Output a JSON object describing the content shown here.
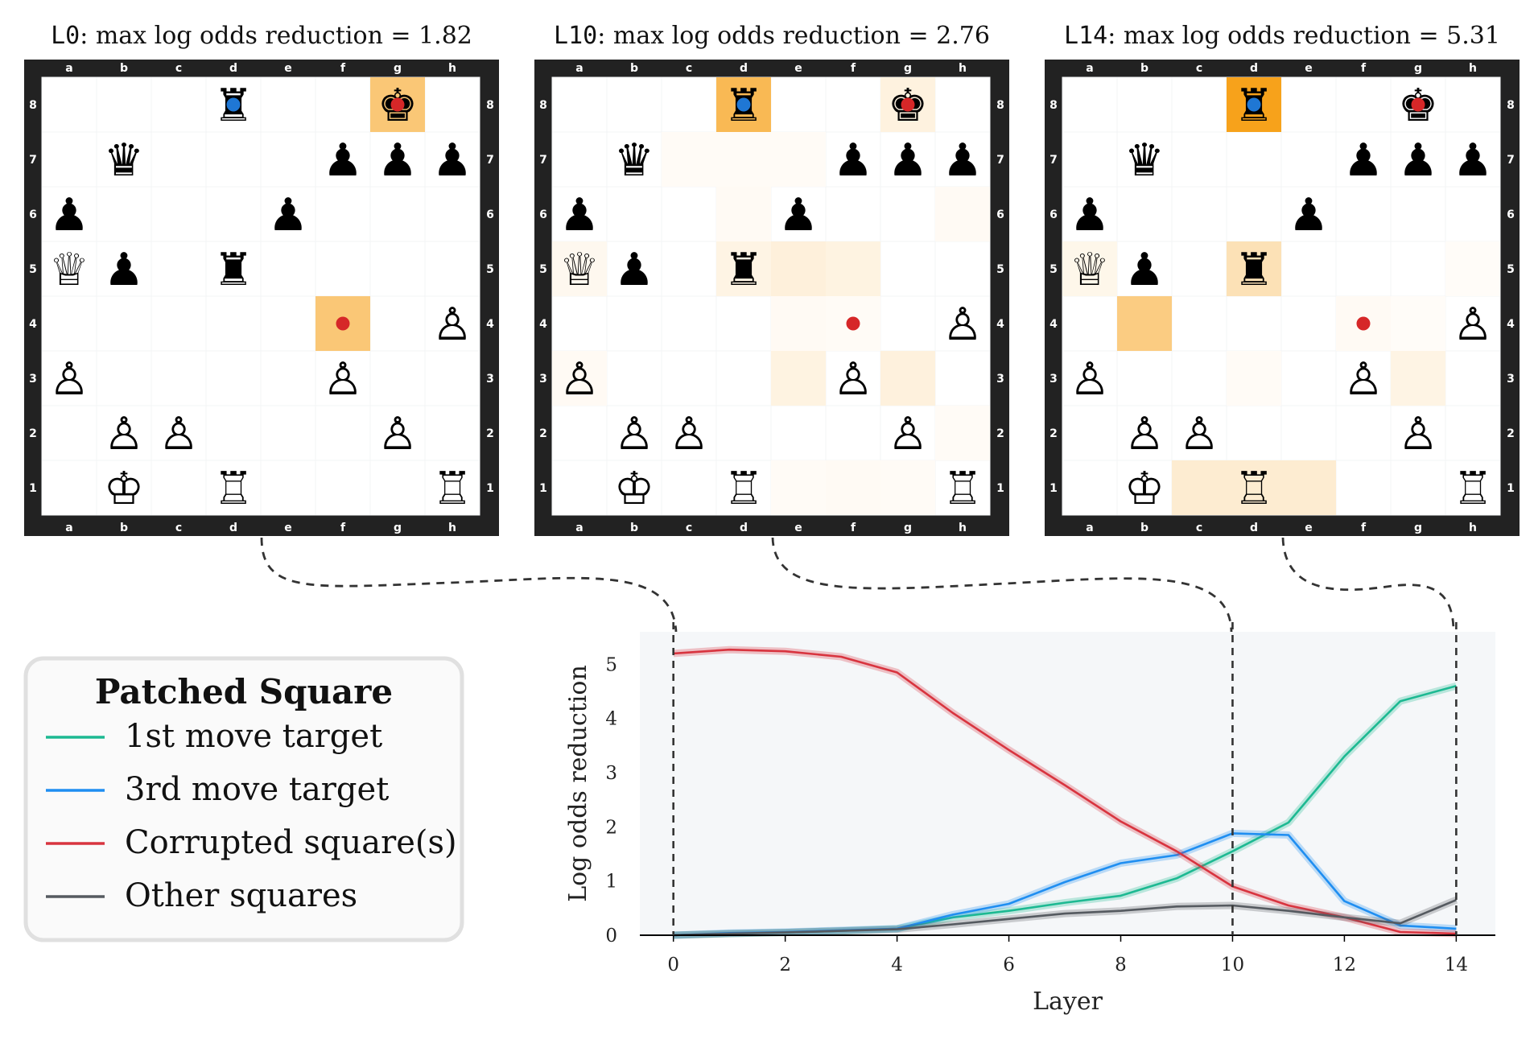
{
  "boards": [
    {
      "title_prefix": "L0",
      "title_rest": ": max log odds reduction = 1.82",
      "highlights": [
        {
          "sq": "g8",
          "v": 0.6
        },
        {
          "sq": "f4",
          "v": 0.6
        }
      ]
    },
    {
      "title_prefix": "L10",
      "title_rest": ": max log odds reduction = 2.76",
      "highlights": [
        {
          "sq": "d8",
          "v": 0.75
        },
        {
          "sq": "g8",
          "v": 0.14
        },
        {
          "sq": "a5",
          "v": 0.07
        },
        {
          "sq": "d5",
          "v": 0.12
        },
        {
          "sq": "e5",
          "v": 0.16
        },
        {
          "sq": "f5",
          "v": 0.13
        },
        {
          "sq": "e3",
          "v": 0.13
        },
        {
          "sq": "g3",
          "v": 0.15
        },
        {
          "sq": "e4",
          "v": 0.05
        },
        {
          "sq": "f4",
          "v": 0.04
        },
        {
          "sq": "c7",
          "v": 0.04
        },
        {
          "sq": "d7",
          "v": 0.04
        },
        {
          "sq": "e7",
          "v": 0.04
        },
        {
          "sq": "d6",
          "v": 0.05
        },
        {
          "sq": "h6",
          "v": 0.05
        },
        {
          "sq": "a3",
          "v": 0.05
        },
        {
          "sq": "f1",
          "v": 0.05
        },
        {
          "sq": "g1",
          "v": 0.04
        },
        {
          "sq": "e1",
          "v": 0.04
        },
        {
          "sq": "h2",
          "v": 0.04
        }
      ]
    },
    {
      "title_prefix": "L14",
      "title_rest": ": max log odds reduction = 5.31",
      "highlights": [
        {
          "sq": "d8",
          "v": 1.0
        },
        {
          "sq": "b4",
          "v": 0.55
        },
        {
          "sq": "d5",
          "v": 0.32
        },
        {
          "sq": "c1",
          "v": 0.2
        },
        {
          "sq": "d1",
          "v": 0.2
        },
        {
          "sq": "e1",
          "v": 0.2
        },
        {
          "sq": "g3",
          "v": 0.12
        },
        {
          "sq": "a5",
          "v": 0.09
        },
        {
          "sq": "f4",
          "v": 0.05
        },
        {
          "sq": "g4",
          "v": 0.03
        },
        {
          "sq": "h5",
          "v": 0.03
        },
        {
          "sq": "d3",
          "v": 0.04
        }
      ]
    }
  ],
  "position": [
    {
      "sq": "d8",
      "p": "♜"
    },
    {
      "sq": "g8",
      "p": "♚"
    },
    {
      "sq": "b7",
      "p": "♛"
    },
    {
      "sq": "f7",
      "p": "♟"
    },
    {
      "sq": "g7",
      "p": "♟"
    },
    {
      "sq": "h7",
      "p": "♟"
    },
    {
      "sq": "a6",
      "p": "♟"
    },
    {
      "sq": "e6",
      "p": "♟"
    },
    {
      "sq": "a5",
      "p": "♕"
    },
    {
      "sq": "b5",
      "p": "♟"
    },
    {
      "sq": "d5",
      "p": "♜"
    },
    {
      "sq": "h4",
      "p": "♙"
    },
    {
      "sq": "a3",
      "p": "♙"
    },
    {
      "sq": "f3",
      "p": "♙"
    },
    {
      "sq": "b2",
      "p": "♙"
    },
    {
      "sq": "c2",
      "p": "♙"
    },
    {
      "sq": "g2",
      "p": "♙"
    },
    {
      "sq": "b1",
      "p": "♔"
    },
    {
      "sq": "d1",
      "p": "♖"
    },
    {
      "sq": "h1",
      "p": "♖"
    }
  ],
  "markers": [
    {
      "sq": "d8",
      "color": "#1f77d4"
    },
    {
      "sq": "g8",
      "color": "#d62728"
    },
    {
      "sq": "f4",
      "color": "#d62728"
    }
  ],
  "files": [
    "a",
    "b",
    "c",
    "d",
    "e",
    "f",
    "g",
    "h"
  ],
  "ranks": [
    "8",
    "7",
    "6",
    "5",
    "4",
    "3",
    "2",
    "1"
  ],
  "legend": {
    "title": "Patched Square",
    "items": [
      {
        "label": "1st move target",
        "color": "#1db992"
      },
      {
        "label": "3rd move target",
        "color": "#1f8ef1"
      },
      {
        "label": "Corrupted square(s)",
        "color": "#d8343f"
      },
      {
        "label": "Other squares",
        "color": "#555a60"
      }
    ]
  },
  "chart_data": {
    "type": "line",
    "xlabel": "Layer",
    "ylabel": "Log odds reduction",
    "xlim": [
      -0.6,
      14.7
    ],
    "ylim": [
      0,
      5.6
    ],
    "xticks": [
      0,
      2,
      4,
      6,
      8,
      10,
      12,
      14
    ],
    "yticks": [
      0,
      1,
      2,
      3,
      4,
      5
    ],
    "vlines": [
      0,
      10,
      14
    ],
    "grid": false,
    "x": [
      0,
      1,
      2,
      3,
      4,
      5,
      6,
      7,
      8,
      9,
      10,
      11,
      12,
      13,
      14
    ],
    "series": [
      {
        "name": "1st move target",
        "color": "#1db992",
        "values": [
          0.0,
          0.03,
          0.05,
          0.08,
          0.12,
          0.33,
          0.45,
          0.6,
          0.73,
          1.05,
          1.55,
          2.08,
          3.3,
          4.32,
          4.6
        ]
      },
      {
        "name": "3rd move target",
        "color": "#1f8ef1",
        "values": [
          0.0,
          0.04,
          0.06,
          0.09,
          0.12,
          0.38,
          0.58,
          0.98,
          1.33,
          1.48,
          1.88,
          1.85,
          0.63,
          0.18,
          0.12
        ]
      },
      {
        "name": "Corrupted square(s)",
        "color": "#d8343f",
        "values": [
          5.2,
          5.27,
          5.24,
          5.14,
          4.85,
          4.1,
          3.42,
          2.77,
          2.1,
          1.55,
          0.9,
          0.55,
          0.33,
          0.06,
          0.03
        ]
      },
      {
        "name": "Other squares",
        "color": "#555a60",
        "values": [
          0.0,
          0.03,
          0.05,
          0.08,
          0.11,
          0.2,
          0.3,
          0.4,
          0.45,
          0.53,
          0.55,
          0.45,
          0.33,
          0.22,
          0.65
        ]
      }
    ]
  }
}
